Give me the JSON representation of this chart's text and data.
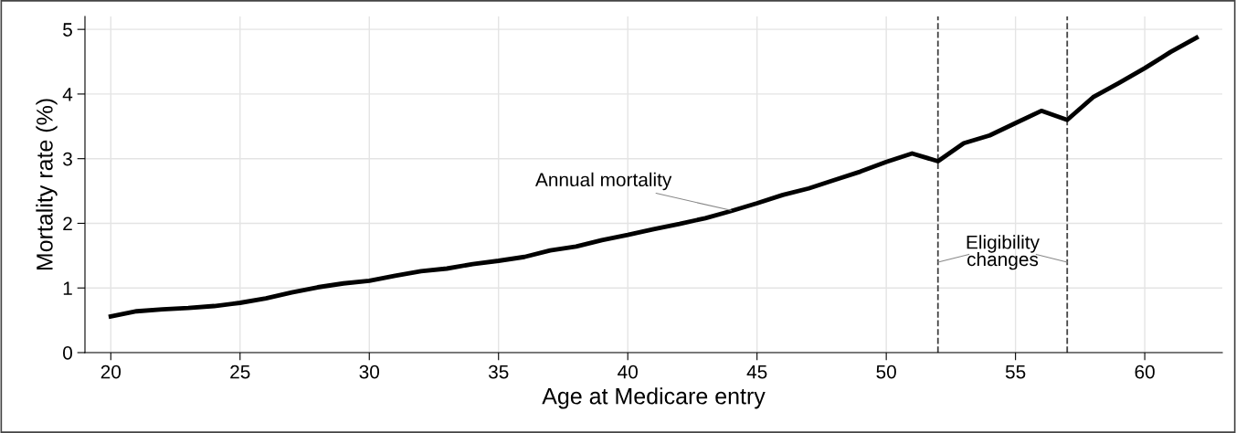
{
  "chart_data": {
    "type": "line",
    "xlabel": "Age at Medicare entry",
    "ylabel": "Mortality rate (%)",
    "x": [
      20,
      21,
      22,
      23,
      24,
      25,
      26,
      27,
      28,
      29,
      30,
      31,
      32,
      33,
      34,
      35,
      36,
      37,
      38,
      39,
      40,
      41,
      42,
      43,
      44,
      45,
      46,
      47,
      48,
      49,
      50,
      51,
      52,
      53,
      54,
      55,
      56,
      57,
      58,
      59,
      60,
      61,
      62
    ],
    "series": [
      {
        "color": "#000000",
        "values": [
          0.56,
          0.64,
          0.67,
          0.69,
          0.72,
          0.77,
          0.84,
          0.93,
          1.01,
          1.07,
          1.11,
          1.19,
          1.26,
          1.3,
          1.37,
          1.42,
          1.48,
          1.58,
          1.64,
          1.74,
          1.82,
          1.91,
          1.99,
          2.08,
          2.19,
          2.31,
          2.44,
          2.54,
          2.67,
          2.8,
          2.95,
          3.08,
          2.96,
          3.24,
          3.36,
          3.55,
          3.74,
          3.6,
          3.95,
          4.17,
          4.4,
          4.65,
          4.87
        ]
      }
    ],
    "xlim": [
      19,
      63
    ],
    "xticks": [
      20,
      25,
      30,
      35,
      40,
      45,
      50,
      55,
      60
    ],
    "ylim": [
      0,
      5.2
    ],
    "yticks": [
      0,
      1,
      2,
      3,
      4,
      5
    ],
    "ref_lines": [
      {
        "axis": "x",
        "value": 52,
        "color": "#444444",
        "line_style": "dashed"
      },
      {
        "axis": "x",
        "value": 57,
        "color": "#444444",
        "line_style": "dashed"
      }
    ],
    "annotations": [
      {
        "text": "Annual mortality",
        "x": 44,
        "y": 2.2
      },
      {
        "text": "Eligibility changes",
        "x": 52,
        "y": 1.4
      }
    ],
    "grid": true,
    "line_style": "solid",
    "marker": "none"
  }
}
